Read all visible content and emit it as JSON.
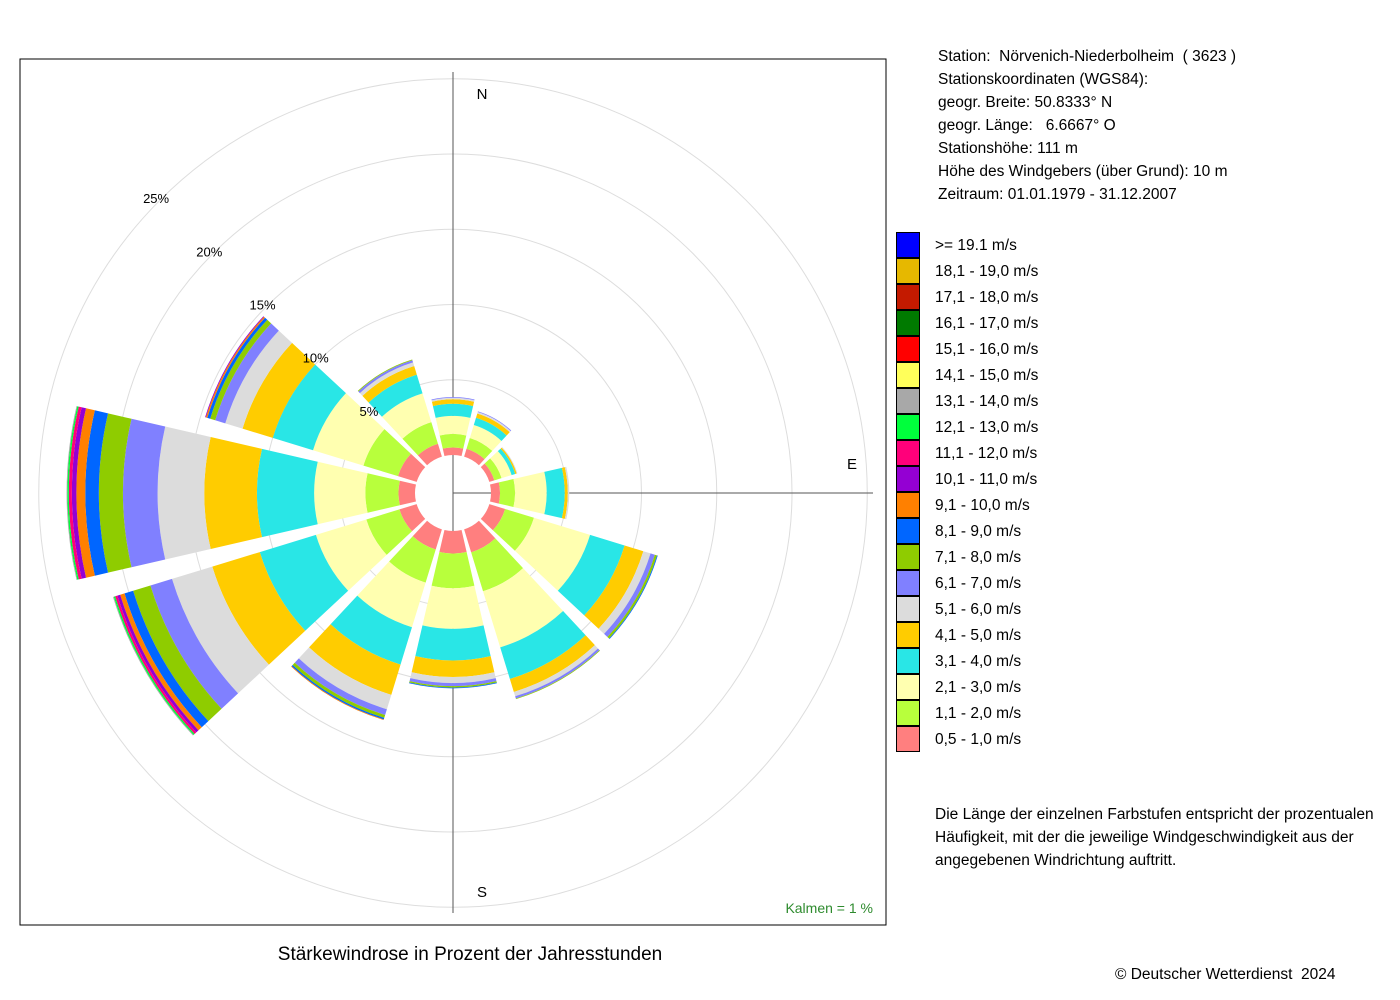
{
  "info": {
    "station": "Station:  Nörvenich-Niederbolheim  ( 3623 )",
    "coords_title": "Stationskoordinaten (WGS84):",
    "lat": "geogr. Breite: 50.8333° N",
    "lon": "geogr. Länge:   6.6667° O",
    "height": "Stationshöhe: 111 m",
    "sensor": "Höhe des Windgebers (über Grund): 10 m",
    "period": "Zeitraum: 01.01.1979 - 31.12.2007"
  },
  "legend_title": "",
  "legend": [
    {
      "label": ">= 19.1 m/s",
      "color": "#0000ff"
    },
    {
      "label": "18,1 - 19,0 m/s",
      "color": "#e6b800"
    },
    {
      "label": "17,1 - 18,0 m/s",
      "color": "#c41a00"
    },
    {
      "label": "16,1 - 17,0 m/s",
      "color": "#007a00"
    },
    {
      "label": "15,1 - 16,0 m/s",
      "color": "#ff0000"
    },
    {
      "label": "14,1 - 15,0 m/s",
      "color": "#ffff5a"
    },
    {
      "label": "13,1 - 14,0 m/s",
      "color": "#a8a8a8"
    },
    {
      "label": "12,1 - 13,0 m/s",
      "color": "#00ff3c"
    },
    {
      "label": "11,1 - 12,0 m/s",
      "color": "#ff007a"
    },
    {
      "label": "10,1 - 11,0 m/s",
      "color": "#9400d3"
    },
    {
      "label": "9,1 - 10,0 m/s",
      "color": "#ff8000"
    },
    {
      "label": "8,1 - 9,0 m/s",
      "color": "#0066ff"
    },
    {
      "label": "7,1 - 8,0 m/s",
      "color": "#8fcc00"
    },
    {
      "label": "6,1 - 7,0 m/s",
      "color": "#8080ff"
    },
    {
      "label": "5,1 - 6,0 m/s",
      "color": "#dcdcdc"
    },
    {
      "label": "4,1 - 5,0 m/s",
      "color": "#ffcc00"
    },
    {
      "label": "3,1 - 4,0 m/s",
      "color": "#29e6e6"
    },
    {
      "label": "2,1 - 3,0 m/s",
      "color": "#ffffb0"
    },
    {
      "label": "1,1 - 2,0 m/s",
      "color": "#b8ff3c"
    },
    {
      "label": "0,5 - 1,0 m/s",
      "color": "#ff7f7f"
    }
  ],
  "note": [
    "Die Länge der einzelnen Farbstufen entspricht der prozentualen",
    "Häufigkeit, mit der die jeweilige Windgeschwindigkeit aus der",
    "angegebenen Windrichtung auftritt."
  ],
  "copyright": "© Deutscher Wetterdienst  2024",
  "chart_data": {
    "type": "wind-rose",
    "title": "Stärkewindrose in Prozent der Jahresstunden",
    "direction_labels": {
      "N": "N",
      "E": "E",
      "S": "S"
    },
    "ring_labels": [
      "5%",
      "10%",
      "15%",
      "20%",
      "25%"
    ],
    "rings": [
      5,
      10,
      15,
      20,
      25
    ],
    "rmax": 25,
    "calm_label": "Kalmen  =  1 %",
    "calm_percent": 1,
    "bin_order": [
      "0,5 - 1,0 m/s",
      "1,1 - 2,0 m/s",
      "2,1 - 3,0 m/s",
      "3,1 - 4,0 m/s",
      "4,1 - 5,0 m/s",
      "5,1 - 6,0 m/s",
      "6,1 - 7,0 m/s",
      "7,1 - 8,0 m/s",
      "8,1 - 9,0 m/s",
      "9,1 - 10,0 m/s",
      "10,1 - 11,0 m/s",
      "11,1 - 12,0 m/s",
      "12,1 - 13,0 m/s",
      "13,1 - 14,0 m/s",
      "14,1 - 15,0 m/s",
      "15,1 - 16,0 m/s",
      "16,1 - 17,0 m/s",
      "17,1 - 18,0 m/s",
      "18,1 - 19,0 m/s",
      ">= 19.1 m/s"
    ],
    "sector_width_deg": 26,
    "sectors": [
      {
        "direction_deg": 0,
        "values": [
          0.5,
          0.9,
          1.2,
          0.8,
          0.3,
          0.1,
          0.05
        ]
      },
      {
        "direction_deg": 30,
        "values": [
          0.55,
          0.75,
          0.9,
          0.5,
          0.3,
          0.1,
          0.05
        ]
      },
      {
        "direction_deg": 60,
        "values": [
          0.35,
          0.5,
          0.7,
          0.25,
          0.1,
          0.05
        ]
      },
      {
        "direction_deg": 90,
        "values": [
          0.6,
          1.0,
          2.1,
          1.2,
          0.2,
          0.1
        ]
      },
      {
        "direction_deg": 120,
        "values": [
          1.1,
          2.0,
          3.9,
          2.4,
          1.3,
          0.5,
          0.3,
          0.15,
          0.05
        ]
      },
      {
        "direction_deg": 150,
        "values": [
          1.6,
          2.7,
          3.9,
          2.2,
          0.9,
          0.3,
          0.15,
          0.05
        ]
      },
      {
        "direction_deg": 180,
        "values": [
          1.5,
          2.3,
          2.7,
          2.1,
          1.1,
          0.4,
          0.2,
          0.1,
          0.05
        ]
      },
      {
        "direction_deg": 210,
        "values": [
          1.4,
          2.3,
          3.1,
          2.6,
          2.1,
          1.0,
          0.4,
          0.2,
          0.1,
          0.05
        ]
      },
      {
        "direction_deg": 240,
        "values": [
          1.2,
          2.3,
          3.5,
          3.9,
          3.3,
          2.8,
          1.5,
          1.2,
          0.6,
          0.3,
          0.2,
          0.15,
          0.1,
          0.05
        ]
      },
      {
        "direction_deg": 270,
        "values": [
          1.1,
          2.2,
          3.4,
          3.8,
          3.5,
          3.1,
          2.3,
          1.6,
          0.9,
          0.6,
          0.3,
          0.2,
          0.1,
          0.05
        ]
      },
      {
        "direction_deg": 300,
        "values": [
          1.3,
          2.4,
          3.5,
          2.8,
          2.1,
          1.2,
          0.7,
          0.35,
          0.2,
          0.1,
          0.05
        ]
      },
      {
        "direction_deg": 330,
        "values": [
          0.9,
          1.5,
          2.0,
          1.3,
          0.6,
          0.25,
          0.15,
          0.05
        ]
      }
    ]
  }
}
